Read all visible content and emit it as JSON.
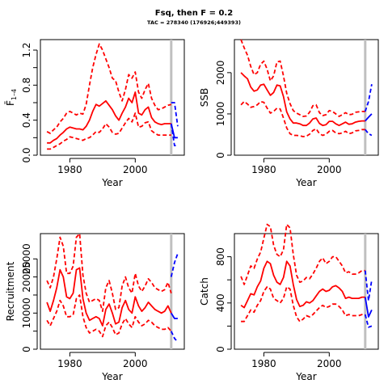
{
  "title": "Fsq, then F = 0.2",
  "subtitle": "TAC = 278340 (176926;449393)",
  "colors": {
    "historic": "#ff0000",
    "projection": "#0000ff",
    "cutoff": "#c0c0c0",
    "axis": "#000000"
  },
  "chart_data": [
    {
      "type": "line",
      "name": "fbar",
      "ylabel": "F̄ 1–4",
      "ylabel_main": "F̄",
      "ylabel_sub": "1–4",
      "xlabel": "Year",
      "xlim": [
        1971,
        2015
      ],
      "ylim": [
        0,
        1.32
      ],
      "xticks": [
        1980,
        2000
      ],
      "xtick_labels": [
        "1980",
        "2000"
      ],
      "yticks": [
        0,
        0.2,
        0.4,
        0.6,
        0.8,
        1.0,
        1.2
      ],
      "ytick_labels": [
        "0.0",
        "",
        "0.4",
        "",
        "0.8",
        "",
        "1.2"
      ],
      "cutoff_year": 2011,
      "historic": {
        "x": [
          1973,
          1974,
          1975,
          1976,
          1977,
          1978,
          1979,
          1980,
          1981,
          1982,
          1983,
          1984,
          1985,
          1986,
          1987,
          1988,
          1989,
          1990,
          1991,
          1992,
          1993,
          1994,
          1995,
          1996,
          1997,
          1998,
          1999,
          2000,
          2001,
          2002,
          2003,
          2004,
          2005,
          2006,
          2007,
          2008,
          2009,
          2010,
          2011
        ],
        "mid": [
          0.14,
          0.14,
          0.17,
          0.19,
          0.23,
          0.26,
          0.3,
          0.32,
          0.31,
          0.3,
          0.3,
          0.29,
          0.33,
          0.4,
          0.5,
          0.58,
          0.56,
          0.59,
          0.62,
          0.57,
          0.52,
          0.45,
          0.4,
          0.48,
          0.55,
          0.65,
          0.6,
          0.72,
          0.48,
          0.46,
          0.52,
          0.55,
          0.43,
          0.38,
          0.36,
          0.35,
          0.36,
          0.36,
          0.36
        ],
        "low": [
          0.07,
          0.07,
          0.09,
          0.11,
          0.13,
          0.16,
          0.18,
          0.21,
          0.2,
          0.19,
          0.18,
          0.17,
          0.19,
          0.2,
          0.23,
          0.27,
          0.26,
          0.3,
          0.36,
          0.32,
          0.26,
          0.24,
          0.25,
          0.31,
          0.37,
          0.42,
          0.38,
          0.48,
          0.32,
          0.33,
          0.37,
          0.38,
          0.28,
          0.25,
          0.23,
          0.23,
          0.23,
          0.23,
          0.23
        ],
        "high": [
          0.27,
          0.25,
          0.29,
          0.32,
          0.38,
          0.42,
          0.48,
          0.5,
          0.48,
          0.46,
          0.48,
          0.47,
          0.58,
          0.8,
          1.0,
          1.15,
          1.27,
          1.2,
          1.1,
          1.0,
          0.88,
          0.85,
          0.72,
          0.62,
          0.75,
          0.92,
          0.88,
          0.95,
          0.72,
          0.65,
          0.75,
          0.82,
          0.65,
          0.57,
          0.52,
          0.53,
          0.55,
          0.57,
          0.58
        ]
      },
      "projection": {
        "x": [
          2011,
          2012,
          2013
        ],
        "mid": [
          0.36,
          0.2,
          0.2
        ],
        "low": [
          0.36,
          0.11,
          0.11
        ],
        "high": [
          0.6,
          0.6,
          0.33
        ]
      }
    },
    {
      "type": "line",
      "name": "ssb",
      "ylabel": "SSB",
      "xlabel": "Year",
      "xlim": [
        1971,
        2015
      ],
      "ylim": [
        0,
        2800
      ],
      "xticks": [
        1980,
        2000
      ],
      "xtick_labels": [
        "1980",
        "2000"
      ],
      "yticks": [
        0,
        1000,
        2000
      ],
      "ytick_labels": [
        "0",
        "1000",
        "2000"
      ],
      "cutoff_year": 2011,
      "historic": {
        "x": [
          1973,
          1974,
          1975,
          1976,
          1977,
          1978,
          1979,
          1980,
          1981,
          1982,
          1983,
          1984,
          1985,
          1986,
          1987,
          1988,
          1989,
          1990,
          1991,
          1992,
          1993,
          1994,
          1995,
          1996,
          1997,
          1998,
          1999,
          2000,
          2001,
          2002,
          2003,
          2004,
          2005,
          2006,
          2007,
          2008,
          2009,
          2010,
          2011
        ],
        "mid": [
          2000,
          1920,
          1850,
          1650,
          1550,
          1580,
          1700,
          1720,
          1580,
          1450,
          1520,
          1700,
          1680,
          1420,
          1050,
          880,
          780,
          780,
          760,
          720,
          720,
          780,
          880,
          900,
          770,
          720,
          740,
          820,
          820,
          760,
          720,
          760,
          800,
          750,
          760,
          800,
          820,
          830,
          830
        ],
        "low": [
          1220,
          1300,
          1240,
          1160,
          1180,
          1220,
          1300,
          1280,
          1140,
          1020,
          1060,
          1140,
          1120,
          900,
          660,
          520,
          480,
          480,
          470,
          450,
          460,
          510,
          600,
          640,
          520,
          480,
          510,
          580,
          600,
          540,
          520,
          540,
          580,
          520,
          540,
          590,
          600,
          620,
          620
        ],
        "high": [
          2800,
          2600,
          2420,
          2150,
          1950,
          2000,
          2200,
          2280,
          2080,
          1800,
          1920,
          2260,
          2280,
          1920,
          1500,
          1250,
          1080,
          1020,
          980,
          940,
          950,
          1040,
          1200,
          1220,
          1030,
          960,
          980,
          1080,
          1060,
          1000,
          940,
          980,
          1030,
          980,
          990,
          1040,
          1050,
          1060,
          1060
        ]
      },
      "projection": {
        "x": [
          2011,
          2012,
          2013
        ],
        "mid": [
          830,
          920,
          1000
        ],
        "low": [
          620,
          520,
          480
        ],
        "high": [
          1060,
          1300,
          1720
        ]
      }
    },
    {
      "type": "line",
      "name": "recruitment",
      "ylabel": "Recruitment",
      "xlabel": "Year",
      "xlim": [
        1971,
        2015
      ],
      "ylim": [
        0,
        32000
      ],
      "xticks": [
        1980,
        2000
      ],
      "xtick_labels": [
        "1980",
        "2000"
      ],
      "yticks": [
        0,
        5000,
        10000,
        15000,
        20000,
        25000
      ],
      "ytick_labels": [
        "0",
        "",
        "10000",
        "",
        "20000",
        "25000"
      ],
      "cutoff_year": 2011,
      "historic": {
        "x": [
          1973,
          1974,
          1975,
          1976,
          1977,
          1978,
          1979,
          1980,
          1981,
          1982,
          1983,
          1984,
          1985,
          1986,
          1987,
          1988,
          1989,
          1990,
          1991,
          1992,
          1993,
          1994,
          1995,
          1996,
          1997,
          1998,
          1999,
          2000,
          2001,
          2002,
          2003,
          2004,
          2005,
          2006,
          2007,
          2008,
          2009,
          2010,
          2011
        ],
        "mid": [
          13000,
          10500,
          13500,
          17000,
          22000,
          20000,
          14500,
          14000,
          15500,
          22000,
          22500,
          14000,
          10000,
          8000,
          8500,
          9000,
          8500,
          6500,
          11000,
          12500,
          10000,
          7000,
          7500,
          11500,
          13500,
          11000,
          10000,
          14500,
          12000,
          10500,
          11500,
          13000,
          12000,
          11000,
          10500,
          10000,
          10500,
          12000,
          10000
        ],
        "low": [
          8000,
          6500,
          8500,
          10500,
          13500,
          12000,
          9000,
          9000,
          9500,
          14000,
          15000,
          9000,
          6000,
          4500,
          5000,
          5500,
          5000,
          3500,
          6500,
          7500,
          6000,
          4000,
          4500,
          7000,
          8500,
          7000,
          6000,
          9000,
          7500,
          6500,
          7000,
          8000,
          7500,
          6500,
          6000,
          5500,
          5500,
          6000,
          5000
        ],
        "high": [
          19000,
          17000,
          20000,
          25000,
          31000,
          28500,
          21000,
          21000,
          23000,
          31000,
          32000,
          20500,
          15500,
          13000,
          13500,
          14000,
          13500,
          10500,
          17000,
          19000,
          15500,
          11000,
          11500,
          17500,
          20000,
          17000,
          15500,
          21000,
          17500,
          16000,
          17500,
          19500,
          18500,
          17000,
          16500,
          16000,
          16500,
          18500,
          15500
        ]
      },
      "projection": {
        "x": [
          2011,
          2012,
          2013
        ],
        "mid": [
          10000,
          8500,
          8500
        ],
        "low": [
          5000,
          3000,
          2000
        ],
        "high": [
          20000,
          24000,
          26500
        ]
      }
    },
    {
      "type": "line",
      "name": "catch",
      "ylabel": "Catch",
      "xlabel": "Year",
      "xlim": [
        1971,
        2015
      ],
      "ylim": [
        0,
        1000
      ],
      "xticks": [
        1980,
        2000
      ],
      "xtick_labels": [
        "1980",
        "2000"
      ],
      "yticks": [
        0,
        200,
        400,
        600,
        800
      ],
      "ytick_labels": [
        "0",
        "",
        "400",
        "",
        "800"
      ],
      "cutoff_year": 2011,
      "historic": {
        "x": [
          1973,
          1974,
          1975,
          1976,
          1977,
          1978,
          1979,
          1980,
          1981,
          1982,
          1983,
          1984,
          1985,
          1986,
          1987,
          1988,
          1989,
          1990,
          1991,
          1992,
          1993,
          1994,
          1995,
          1996,
          1997,
          1998,
          1999,
          2000,
          2001,
          2002,
          2003,
          2004,
          2005,
          2006,
          2007,
          2008,
          2009,
          2010,
          2011
        ],
        "mid": [
          380,
          360,
          420,
          480,
          470,
          540,
          590,
          700,
          760,
          740,
          640,
          580,
          560,
          620,
          760,
          720,
          560,
          430,
          370,
          380,
          410,
          400,
          420,
          460,
          500,
          520,
          500,
          510,
          540,
          550,
          530,
          500,
          440,
          450,
          440,
          440,
          440,
          450,
          450
        ],
        "low": [
          240,
          240,
          290,
          340,
          320,
          380,
          420,
          500,
          540,
          520,
          440,
          420,
          400,
          440,
          540,
          520,
          380,
          280,
          240,
          260,
          290,
          280,
          300,
          330,
          360,
          380,
          360,
          370,
          390,
          390,
          370,
          340,
          290,
          300,
          290,
          290,
          290,
          300,
          300
        ],
        "high": [
          630,
          560,
          640,
          720,
          700,
          780,
          840,
          960,
          1080,
          1060,
          900,
          820,
          800,
          860,
          1080,
          1050,
          820,
          640,
          580,
          590,
          620,
          610,
          650,
          700,
          760,
          790,
          740,
          760,
          800,
          800,
          760,
          720,
          660,
          670,
          650,
          650,
          660,
          680,
          680
        ]
      },
      "projection": {
        "x": [
          2011,
          2012,
          2013
        ],
        "mid": [
          450,
          280,
          340
        ],
        "low": [
          300,
          190,
          200
        ],
        "high": [
          680,
          420,
          600
        ]
      }
    }
  ]
}
